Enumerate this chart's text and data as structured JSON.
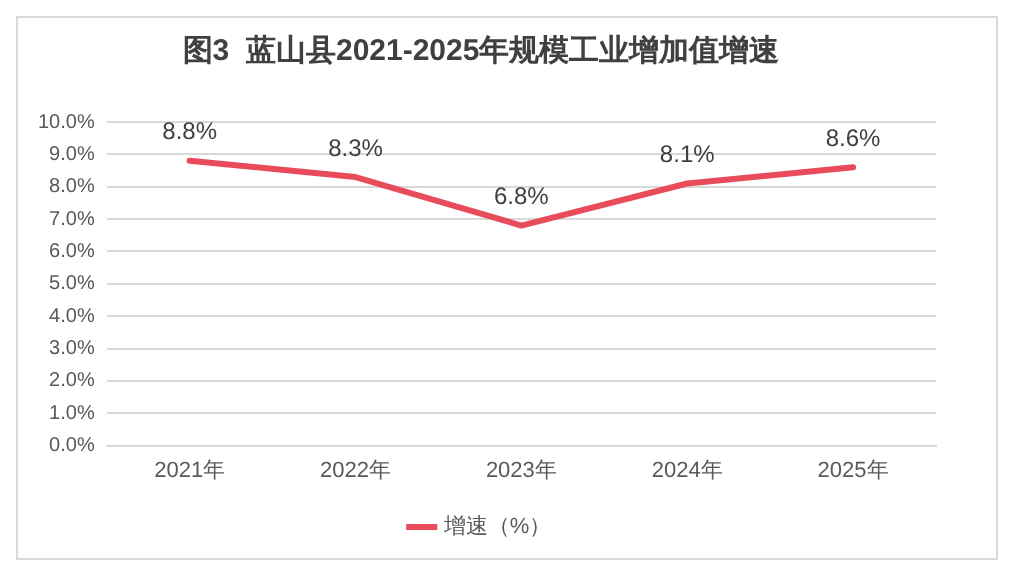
{
  "chart_data": {
    "type": "line",
    "title": "图3  蓝山县2021-2025年规模工业增加值增速",
    "categories": [
      "2021年",
      "2022年",
      "2023年",
      "2024年",
      "2025年"
    ],
    "series": [
      {
        "name": "增速（%）",
        "color": "#e84c5a",
        "values": [
          8.8,
          8.3,
          6.8,
          8.1,
          8.6
        ],
        "value_labels": [
          "8.8%",
          "8.3%",
          "6.8%",
          "8.1%",
          "8.6%"
        ]
      }
    ],
    "ylim": [
      0,
      10
    ],
    "yticks": [
      {
        "value": 0,
        "label": "0.0%"
      },
      {
        "value": 1,
        "label": "1.0%"
      },
      {
        "value": 2,
        "label": "2.0%"
      },
      {
        "value": 3,
        "label": "3.0%"
      },
      {
        "value": 4,
        "label": "4.0%"
      },
      {
        "value": 5,
        "label": "5.0%"
      },
      {
        "value": 6,
        "label": "6.0%"
      },
      {
        "value": 7,
        "label": "7.0%"
      },
      {
        "value": 8,
        "label": "8.0%"
      },
      {
        "value": 9,
        "label": "9.0%"
      },
      {
        "value": 10,
        "label": "10.0%"
      }
    ],
    "grid": "y",
    "legend": "bottom",
    "marker": "none",
    "line_style": "solid"
  }
}
